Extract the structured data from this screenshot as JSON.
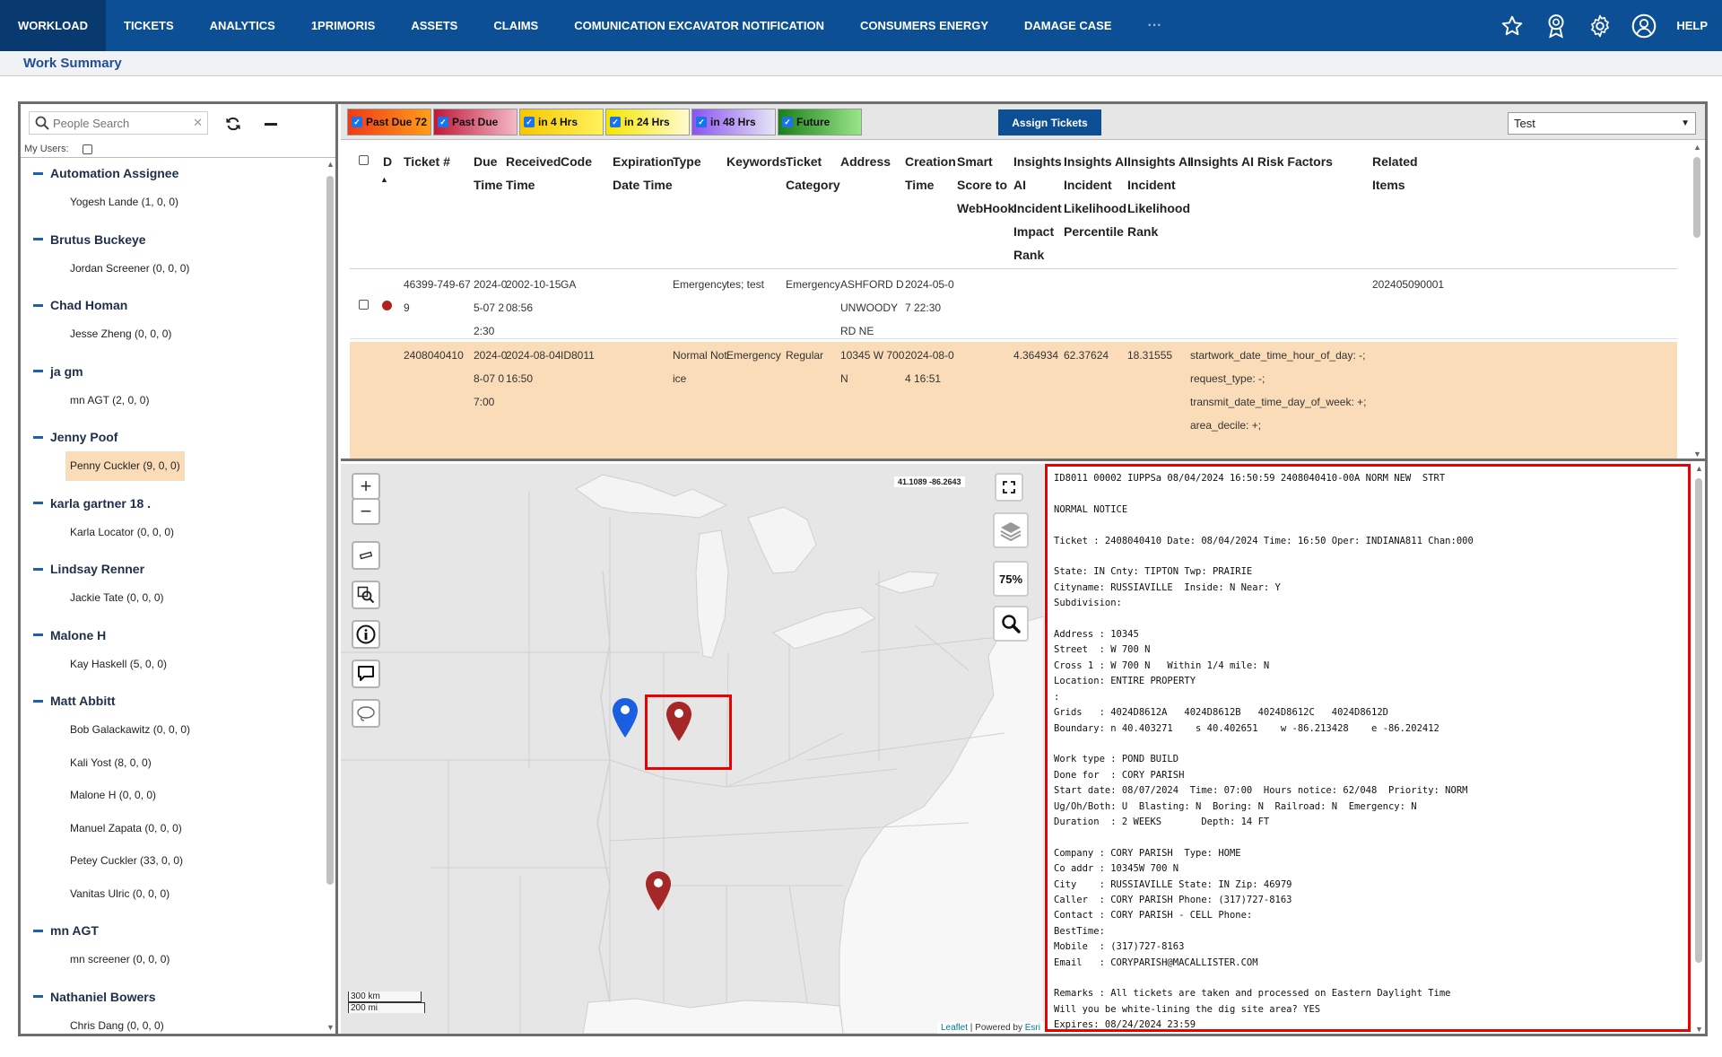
{
  "nav": {
    "items": [
      "WORKLOAD",
      "TICKETS",
      "ANALYTICS",
      "1PRIMORIS",
      "ASSETS",
      "CLAIMS",
      "COMUNICATION EXCAVATOR NOTIFICATION",
      "CONSUMERS ENERGY",
      "DAMAGE CASE"
    ],
    "more": "···",
    "help": "HELP",
    "icons": [
      "star-icon",
      "award-icon",
      "gear-icon",
      "user-icon"
    ]
  },
  "subheader": {
    "title": "Work Summary"
  },
  "people": {
    "search_placeholder": "People Search",
    "my_users_label": "My Users:",
    "groups": [
      {
        "name": "Automation Assignee",
        "users": [
          "Yogesh Lande (1, 0, 0)"
        ]
      },
      {
        "name": "Brutus Buckeye",
        "users": [
          "Jordan Screener (0, 0, 0)"
        ]
      },
      {
        "name": "Chad Homan",
        "users": [
          "Jesse Zheng (0, 0, 0)"
        ]
      },
      {
        "name": "ja gm",
        "users": [
          "mn AGT (2, 0, 0)"
        ]
      },
      {
        "name": "Jenny Poof",
        "users": [
          "Penny Cuckler (9, 0, 0)"
        ]
      },
      {
        "name": "karla gartner 18 .",
        "users": [
          "Karla Locator (0, 0, 0)"
        ]
      },
      {
        "name": "Lindsay Renner",
        "users": [
          "Jackie Tate (0, 0, 0)"
        ]
      },
      {
        "name": "Malone H",
        "users": [
          "Kay Haskell (5, 0, 0)"
        ]
      },
      {
        "name": "Matt Abbitt",
        "users": [
          "Bob Galackawitz (0, 0, 0)",
          "Kali Yost (8, 0, 0)",
          "Malone H (0, 0, 0)",
          "Manuel Zapata (0, 0, 0)",
          "Petey Cuckler (33, 0, 0)",
          "Vanitas Ulric (0, 0, 0)"
        ]
      },
      {
        "name": "mn AGT",
        "users": [
          "mn screener (0, 0, 0)"
        ]
      },
      {
        "name": "Nathaniel Bowers",
        "users": [
          "Chris Dang (0, 0, 0)"
        ]
      }
    ],
    "selected_user": "Penny Cuckler (9, 0, 0)"
  },
  "filters": [
    {
      "label": "Past Due 72",
      "color": "#f03a17",
      "color2": "#ff9d1a"
    },
    {
      "label": "Past Due",
      "color": "#c01838",
      "color2": "#f4b9c7"
    },
    {
      "label": "in 4 Hrs",
      "color": "#f7c600",
      "color2": "#fff25b"
    },
    {
      "label": "in 24 Hrs",
      "color": "#f4e600",
      "color2": "#fffbd0"
    },
    {
      "label": "in 48 Hrs",
      "color": "#8a54f0",
      "color2": "#e5e5f5"
    },
    {
      "label": "Future",
      "color": "#1b7f1b",
      "color2": "#9ae68a"
    }
  ],
  "assign_label": "Assign Tickets",
  "select_value": "Test",
  "grid": {
    "headers": [
      {
        "key": "d",
        "label": "D"
      },
      {
        "key": "ticket",
        "label": "Ticket #"
      },
      {
        "key": "due",
        "label": "Due Time"
      },
      {
        "key": "recv",
        "label": "Received Time"
      },
      {
        "key": "code",
        "label": "Code"
      },
      {
        "key": "exp",
        "label": "Expiration Date Time"
      },
      {
        "key": "type",
        "label": "Type"
      },
      {
        "key": "kw",
        "label": "Keywords"
      },
      {
        "key": "cat",
        "label": "Ticket Category"
      },
      {
        "key": "addr",
        "label": "Address"
      },
      {
        "key": "create",
        "label": "Creation Time"
      },
      {
        "key": "smart",
        "label": "Smart Score to WebHook"
      },
      {
        "key": "imp",
        "label": "Insights AI Incident Impact Rank"
      },
      {
        "key": "lik",
        "label": "Insights AI Incident Likelihood Percentile"
      },
      {
        "key": "likr",
        "label": "Insights AI Incident Likelihood Rank"
      },
      {
        "key": "risk",
        "label": "Insights AI Risk Factors"
      },
      {
        "key": "rel",
        "label": "Related Items"
      }
    ],
    "rows": [
      {
        "ticket": "46399-749-679",
        "due": "2024-05-07 22:30",
        "recv": "2002-10-15 08:56",
        "code": "GA",
        "exp": "",
        "type": "Emergency",
        "kw": "tes; test",
        "cat": "Emergency",
        "addr": "ASHFORD DUNWOODY RD NE",
        "create": "2024-05-07 22:30",
        "smart": "",
        "imp": "",
        "lik": "",
        "likr": "",
        "risk": "",
        "rel": "202405090001",
        "dot": "#b22222"
      },
      {
        "ticket": "2408040410",
        "due": "2024-08-07 07:00",
        "recv": "2024-08-04 16:50",
        "code": "ID8011",
        "exp": "",
        "type": "Normal Notice",
        "kw": "Emergency",
        "cat": "Regular",
        "addr": "10345 W 700 N",
        "create": "2024-08-04 16:51",
        "smart": "",
        "imp": "4.364934",
        "lik": "62.37624",
        "likr": "18.31555",
        "risk": "startwork_date_time_hour_of_day: -;\nrequest_type: -;\ntransmit_date_time_day_of_week: +;\narea_decile: +;\ntransmit_date_time_day_of_year: +;\nexcavator_company_name_word_fac...",
        "rel": ""
      }
    ]
  },
  "map": {
    "coords": "41.1089 -86.2643",
    "zoom_label": "75%",
    "scale_km": "300 km",
    "scale_mi": "200 mi",
    "attribution_link": "Leaflet",
    "attribution_text": "| Powered by",
    "attribution_esri": "Esri",
    "marker_colors": {
      "selected": "#1a5fe0",
      "other": "#a52727"
    }
  },
  "detail": {
    "text": "ID8011 00002 IUPPSa 08/04/2024 16:50:59 2408040410-00A NORM NEW  STRT\n\nNORMAL NOTICE\n\nTicket : 2408040410 Date: 08/04/2024 Time: 16:50 Oper: INDIANA811 Chan:000\n\nState: IN Cnty: TIPTON Twp: PRAIRIE\nCityname: RUSSIAVILLE  Inside: N Near: Y\nSubdivision:\n\nAddress : 10345\nStreet  : W 700 N\nCross 1 : W 700 N   Within 1/4 mile: N\nLocation: ENTIRE PROPERTY\n:\nGrids   : 4024D8612A   4024D8612B   4024D8612C   4024D8612D\nBoundary: n 40.403271    s 40.402651    w -86.213428    e -86.202412\n\nWork type : POND BUILD\nDone for  : CORY PARISH\nStart date: 08/07/2024  Time: 07:00  Hours notice: 62/048  Priority: NORM\nUg/Oh/Both: U  Blasting: N  Boring: N  Railroad: N  Emergency: N\nDuration  : 2 WEEKS       Depth: 14 FT\n\nCompany : CORY PARISH  Type: HOME\nCo addr : 10345W 700 N\nCity    : RUSSIAVILLE State: IN Zip: 46979\nCaller  : CORY PARISH Phone: (317)727-8163\nContact : CORY PARISH - CELL Phone:\nBestTime:\nMobile  : (317)727-8163\nEmail   : CORYPARISH@MACALLISTER.COM\n\nRemarks : All tickets are taken and processed on Eastern Daylight Time\nWill you be white-lining the dig site area? YES\nExpires: 08/24/2024 23:59"
  }
}
